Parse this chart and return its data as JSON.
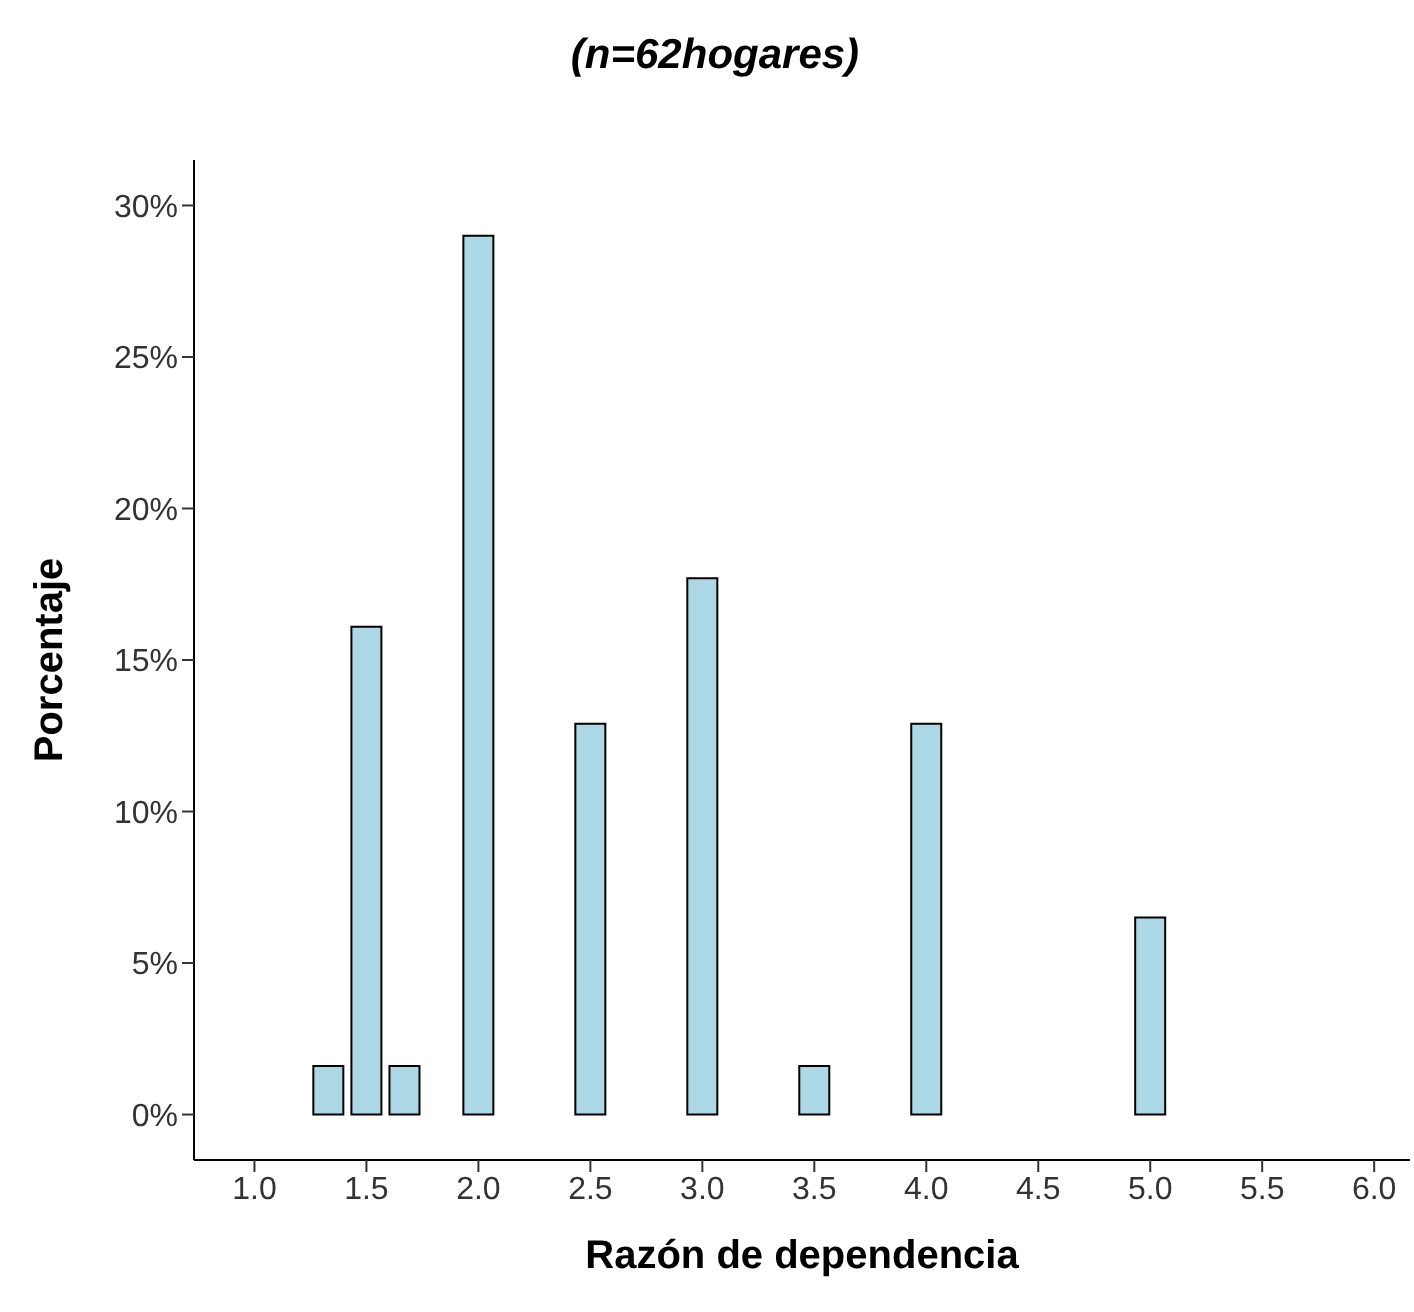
{
  "chart_data": {
    "type": "bar",
    "title": "(n=62hogares)",
    "xlabel": "Razón de dependencia",
    "ylabel": "Porcentaje",
    "x": [
      1.33,
      1.5,
      1.67,
      2,
      2.5,
      3,
      3.5,
      4,
      5
    ],
    "values": [
      1.6,
      16.1,
      1.6,
      29,
      12.9,
      17.7,
      1.6,
      12.9,
      6.5
    ],
    "color": "#add8e6",
    "xlim": [
      0.73,
      6.16
    ],
    "xticks": [
      {
        "value": 1,
        "label": "1.0"
      },
      {
        "value": 1.5,
        "label": "1.5"
      },
      {
        "value": 2,
        "label": "2.0"
      },
      {
        "value": 2.5,
        "label": "2.5"
      },
      {
        "value": 3,
        "label": "3.0"
      },
      {
        "value": 3.5,
        "label": "3.5"
      },
      {
        "value": 4,
        "label": "4.0"
      },
      {
        "value": 4.5,
        "label": "4.5"
      },
      {
        "value": 5,
        "label": "5.0"
      },
      {
        "value": 5.5,
        "label": "5.5"
      },
      {
        "value": 6,
        "label": "6.0"
      }
    ],
    "ylim": [
      -1.5,
      31.5
    ],
    "yticks": [
      {
        "value": 0,
        "label": "0%"
      },
      {
        "value": 5,
        "label": "5%"
      },
      {
        "value": 10,
        "label": "10%"
      },
      {
        "value": 15,
        "label": "15%"
      },
      {
        "value": 20,
        "label": "20%"
      },
      {
        "value": 25,
        "label": "25%"
      },
      {
        "value": 30,
        "label": "30%"
      }
    ],
    "grid": false,
    "legend": false
  }
}
